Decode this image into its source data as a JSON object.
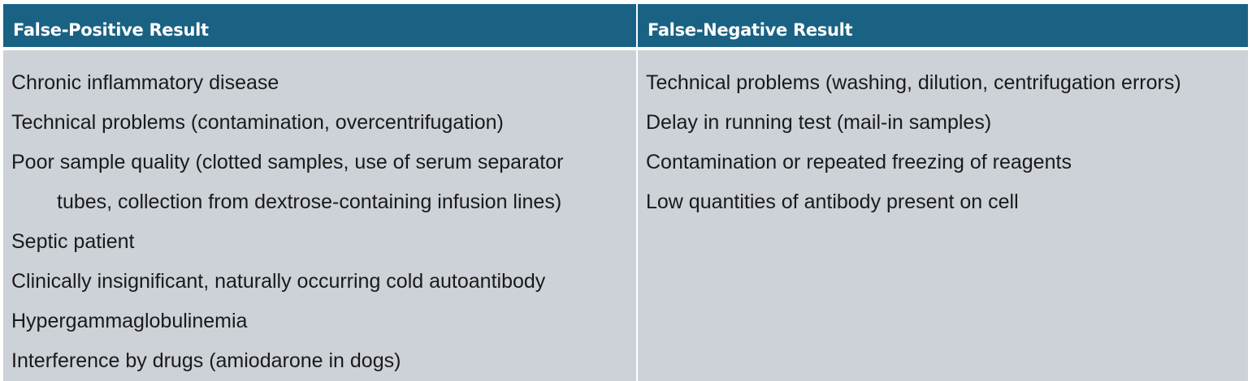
{
  "table": {
    "left": {
      "header": "False-Positive Result",
      "items": [
        "Chronic inflammatory disease",
        "Technical problems (contamination, overcentrifugation)",
        "Poor sample quality (clotted samples, use of serum separator",
        "tubes, collection from dextrose-containing infusion lines)",
        "Septic patient",
        "Clinically insignificant, naturally occurring cold autoantibody",
        "Hypergammaglobulinemia",
        "Interference by drugs (amiodarone in dogs)"
      ]
    },
    "right": {
      "header": "False-Negative Result",
      "items": [
        "Technical problems (washing, dilution, centrifugation errors)",
        "Delay in running test (mail-in samples)",
        "Contamination or repeated freezing of reagents",
        "Low quantities of antibody present on cell"
      ]
    }
  }
}
